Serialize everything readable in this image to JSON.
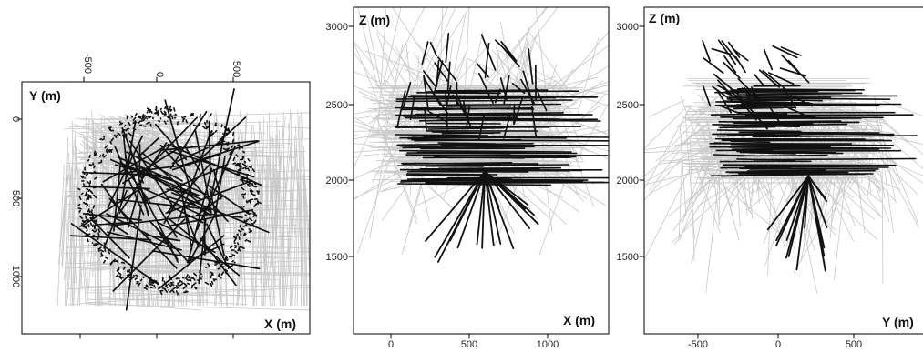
{
  "chart_data": [
    {
      "type": "scatter",
      "panel": "plan view",
      "xlabel": "X (m)",
      "ylabel": "Y (m)",
      "xlim": [
        -1000,
        1000
      ],
      "ylim": [
        1250,
        -100
      ],
      "xticks": [
        "-500",
        "0",
        "500"
      ],
      "yticks": [
        "0",
        "500",
        "1000"
      ],
      "xtick_values": [
        -500,
        0,
        500
      ],
      "ytick_values": [
        0,
        500,
        1000
      ],
      "x_ticks_position": "top, rotated",
      "y_ticks_position": "left, rotated",
      "series": [
        {
          "color": "#c8c8c8",
          "role": "background traces"
        },
        {
          "color": "#111111",
          "role": "highlighted traces"
        }
      ],
      "grid": false
    },
    {
      "type": "scatter",
      "panel": "vertical section",
      "xlabel": "X (m)",
      "ylabel": "Z (m)",
      "xlim": [
        -200,
        1250
      ],
      "ylim": [
        1050,
        3100
      ],
      "xticks": [
        "0",
        "500",
        "1000"
      ],
      "yticks": [
        "1500",
        "2000",
        "2500",
        "3000"
      ],
      "xtick_values": [
        0,
        500,
        1000
      ],
      "ytick_values": [
        1500,
        2000,
        2500,
        3000
      ],
      "series": [
        {
          "color": "#c8c8c8",
          "role": "background traces"
        },
        {
          "color": "#111111",
          "role": "highlighted traces"
        }
      ],
      "grid": false
    },
    {
      "type": "scatter",
      "panel": "vertical section",
      "xlabel": "Y (m)",
      "ylabel": "Z (m)",
      "xlim": [
        -900,
        900
      ],
      "ylim": [
        1050,
        3100
      ],
      "xticks": [
        "-500",
        "0",
        "500"
      ],
      "yticks": [
        "1500",
        "2000",
        "2500",
        "3000"
      ],
      "xtick_values": [
        -500,
        0,
        500
      ],
      "ytick_values": [
        1500,
        2000,
        2500,
        3000
      ],
      "series": [
        {
          "color": "#c8c8c8",
          "role": "background traces"
        },
        {
          "color": "#111111",
          "role": "highlighted traces"
        }
      ],
      "grid": false
    }
  ]
}
